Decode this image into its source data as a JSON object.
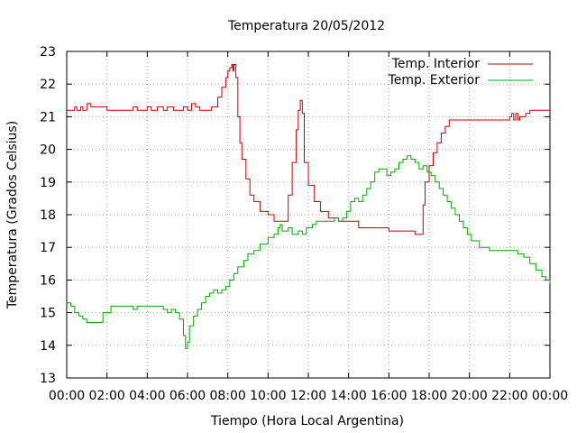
{
  "chart_data": {
    "type": "line",
    "title": "Temperatura 20/05/2012",
    "xlabel": "Tiempo (Hora Local Argentina)",
    "ylabel": "Temperatura (Grados Celsius)",
    "xlim": [
      0,
      24
    ],
    "ylim": [
      13,
      23
    ],
    "xtick_labels": [
      "00:00",
      "02:00",
      "04:00",
      "06:00",
      "08:00",
      "10:00",
      "12:00",
      "14:00",
      "16:00",
      "18:00",
      "20:00",
      "22:00",
      "00:00"
    ],
    "ytick_labels": [
      "13",
      "14",
      "15",
      "16",
      "17",
      "18",
      "19",
      "20",
      "21",
      "22",
      "23"
    ],
    "grid": true,
    "legend_position": "top-right",
    "series": [
      {
        "name": "Temp. Interior",
        "color": "#cc0000",
        "step": true,
        "x": [
          0,
          0.4,
          0.5,
          0.7,
          0.8,
          1.0,
          1.2,
          1.5,
          2.0,
          2.5,
          3.0,
          3.3,
          3.5,
          3.8,
          4.0,
          4.2,
          4.5,
          4.8,
          5.0,
          5.3,
          5.5,
          5.8,
          6.0,
          6.2,
          6.4,
          6.6,
          7.0,
          7.2,
          7.5,
          7.7,
          7.9,
          8.0,
          8.1,
          8.2,
          8.25,
          8.3,
          8.4,
          8.5,
          8.6,
          8.7,
          8.9,
          9.1,
          9.3,
          9.6,
          10.0,
          10.3,
          10.5,
          10.8,
          11.0,
          11.2,
          11.4,
          11.5,
          11.6,
          11.7,
          11.8,
          12.0,
          12.3,
          12.6,
          13.0,
          13.5,
          14.0,
          14.5,
          15.0,
          15.5,
          16.0,
          16.5,
          17.0,
          17.3,
          17.5,
          17.7,
          17.8,
          18.0,
          18.2,
          18.4,
          18.6,
          18.8,
          19.0,
          19.5,
          20.0,
          20.5,
          21.0,
          21.5,
          21.9,
          22.0,
          22.1,
          22.2,
          22.3,
          22.4,
          22.5,
          22.8,
          23.0,
          23.5,
          24.0
        ],
        "y": [
          21.2,
          21.3,
          21.2,
          21.3,
          21.2,
          21.4,
          21.3,
          21.3,
          21.2,
          21.2,
          21.2,
          21.3,
          21.2,
          21.2,
          21.3,
          21.2,
          21.3,
          21.2,
          21.3,
          21.2,
          21.2,
          21.3,
          21.2,
          21.4,
          21.3,
          21.2,
          21.2,
          21.3,
          21.6,
          21.9,
          22.2,
          22.4,
          22.5,
          22.6,
          22.4,
          22.6,
          22.2,
          21.0,
          20.2,
          19.7,
          19.1,
          18.6,
          18.4,
          18.1,
          18.0,
          17.8,
          17.8,
          17.8,
          18.6,
          19.6,
          20.6,
          21.2,
          21.5,
          21.1,
          19.6,
          18.9,
          18.4,
          18.1,
          17.9,
          17.8,
          17.8,
          17.6,
          17.6,
          17.6,
          17.5,
          17.5,
          17.5,
          17.4,
          17.4,
          18.3,
          19.0,
          19.5,
          19.9,
          20.2,
          20.5,
          20.7,
          20.9,
          20.9,
          20.9,
          20.9,
          20.9,
          20.9,
          20.9,
          21.0,
          21.1,
          20.9,
          21.1,
          20.9,
          21.0,
          21.1,
          21.2,
          21.2,
          21.2
        ]
      },
      {
        "name": "Temp. Exterior",
        "color": "#00aa00",
        "step": true,
        "x": [
          0,
          0.2,
          0.4,
          0.6,
          0.8,
          1.0,
          1.5,
          1.8,
          2.0,
          2.2,
          2.5,
          3.0,
          3.3,
          3.5,
          3.8,
          4.0,
          4.5,
          4.8,
          5.0,
          5.2,
          5.4,
          5.6,
          5.8,
          5.9,
          6.0,
          6.1,
          6.3,
          6.5,
          6.7,
          6.9,
          7.1,
          7.3,
          7.5,
          7.7,
          7.9,
          8.1,
          8.3,
          8.5,
          8.8,
          9.0,
          9.3,
          9.6,
          10.0,
          10.3,
          10.5,
          10.6,
          10.7,
          10.9,
          11.0,
          11.2,
          11.5,
          11.7,
          11.9,
          12.2,
          12.4,
          12.7,
          13.0,
          13.3,
          13.5,
          13.7,
          13.9,
          14.1,
          14.3,
          14.5,
          14.7,
          14.9,
          15.1,
          15.3,
          15.5,
          15.7,
          15.9,
          16.1,
          16.3,
          16.5,
          16.7,
          16.9,
          17.1,
          17.3,
          17.5,
          17.7,
          17.9,
          18.1,
          18.3,
          18.5,
          18.7,
          18.9,
          19.1,
          19.3,
          19.5,
          19.7,
          19.9,
          20.1,
          20.5,
          21.0,
          21.5,
          22.0,
          22.4,
          22.7,
          23.0,
          23.3,
          23.6,
          23.8,
          24.0
        ],
        "y": [
          15.3,
          15.2,
          15.0,
          14.9,
          14.8,
          14.7,
          14.7,
          15.0,
          15.0,
          15.2,
          15.2,
          15.2,
          15.1,
          15.2,
          15.2,
          15.2,
          15.2,
          15.1,
          15.0,
          15.1,
          15.0,
          14.8,
          14.3,
          13.9,
          14.1,
          14.6,
          14.9,
          15.1,
          15.3,
          15.5,
          15.6,
          15.7,
          15.6,
          15.7,
          15.8,
          16.0,
          16.2,
          16.4,
          16.6,
          16.8,
          16.9,
          17.1,
          17.3,
          17.4,
          17.6,
          17.7,
          17.5,
          17.5,
          17.6,
          17.4,
          17.5,
          17.4,
          17.6,
          17.7,
          17.8,
          17.8,
          17.8,
          17.9,
          17.8,
          17.9,
          18.1,
          18.4,
          18.5,
          18.4,
          18.6,
          18.8,
          19.0,
          19.3,
          19.4,
          19.4,
          19.2,
          19.3,
          19.4,
          19.6,
          19.7,
          19.8,
          19.7,
          19.6,
          19.4,
          19.5,
          19.3,
          19.2,
          19.0,
          18.8,
          18.6,
          18.4,
          18.2,
          18.0,
          17.8,
          17.6,
          17.4,
          17.2,
          17.0,
          16.9,
          16.9,
          16.9,
          16.8,
          16.7,
          16.5,
          16.3,
          16.1,
          16.0,
          15.9
        ]
      }
    ]
  }
}
